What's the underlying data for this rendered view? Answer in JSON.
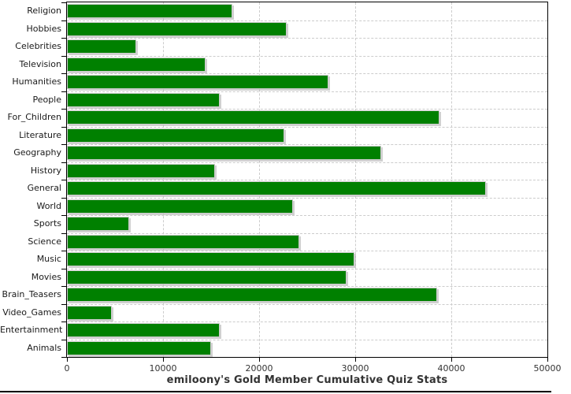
{
  "chart_data": {
    "type": "bar",
    "orientation": "horizontal",
    "title": "emiloony's Gold Member Cumulative Quiz Stats",
    "categories": [
      "Religion",
      "Hobbies",
      "Celebrities",
      "Television",
      "Humanities",
      "People",
      "For_Children",
      "Literature",
      "Geography",
      "History",
      "General",
      "World",
      "Sports",
      "Science",
      "Music",
      "Movies",
      "Brain_Teasers",
      "Video_Games",
      "Entertainment",
      "Animals"
    ],
    "values": [
      17200,
      22900,
      7200,
      14400,
      27200,
      15900,
      38800,
      22600,
      32700,
      15400,
      43600,
      23500,
      6500,
      24200,
      29900,
      29100,
      38500,
      4700,
      15900,
      15000
    ],
    "xlabel": "",
    "ylabel": "",
    "xlim": [
      0,
      50000
    ],
    "x_ticks": [
      0,
      10000,
      20000,
      30000,
      40000,
      50000
    ],
    "x_tick_labels": [
      "0",
      "10000",
      "20000",
      "30000",
      "40000",
      "50000"
    ],
    "grid": "dashed-both-axes",
    "legend": "none",
    "bar_color": "#008000",
    "bar_border_color": "#cccccc",
    "grid_color": "#cccccc",
    "axis_color": "#000000",
    "title_color": "#333333",
    "label_color": "#1a1a1a"
  }
}
